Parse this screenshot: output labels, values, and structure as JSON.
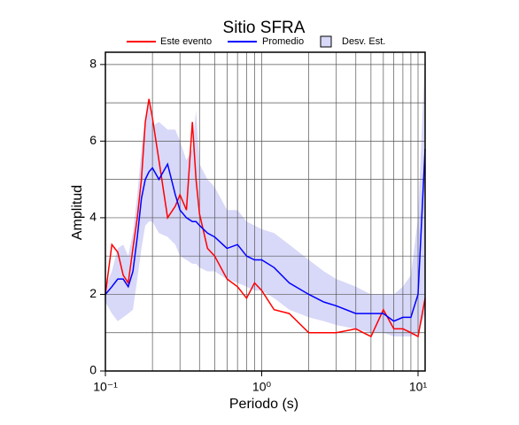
{
  "chart_data": {
    "type": "line",
    "title": "Sitio SFRA",
    "xlabel": "Periodo (s)",
    "ylabel": "Amplitud",
    "xscale": "log",
    "xlim": [
      0.1,
      11.1
    ],
    "ylim": [
      0,
      8.32
    ],
    "xticks": [
      {
        "value": 0.1,
        "label": "10⁻¹"
      },
      {
        "value": 1,
        "label": "10⁰"
      },
      {
        "value": 10,
        "label": "10¹"
      }
    ],
    "xminor": [
      0.2,
      0.3,
      0.4,
      0.5,
      0.6,
      0.7,
      0.8,
      0.9,
      2,
      3,
      4,
      5,
      6,
      7,
      8,
      9
    ],
    "yticks": [
      0,
      2,
      4,
      6,
      8
    ],
    "yminor": [
      1,
      3,
      5,
      7
    ],
    "grid": true,
    "x": [
      0.1,
      0.11,
      0.12,
      0.13,
      0.14,
      0.15,
      0.16,
      0.17,
      0.18,
      0.19,
      0.2,
      0.22,
      0.25,
      0.28,
      0.3,
      0.33,
      0.36,
      0.38,
      0.4,
      0.45,
      0.5,
      0.6,
      0.7,
      0.8,
      0.9,
      1.0,
      1.2,
      1.5,
      2,
      2.5,
      3,
      4,
      5,
      6,
      7,
      8,
      9,
      10,
      11.1
    ],
    "band": {
      "name": "Desv. Est.",
      "color": "#d8d8f8",
      "low": [
        1.8,
        1.5,
        1.3,
        1.4,
        1.5,
        1.6,
        2.4,
        3.2,
        3.8,
        3.9,
        3.9,
        3.6,
        3.5,
        3.3,
        3.0,
        2.9,
        2.8,
        2.8,
        2.7,
        2.6,
        2.6,
        2.4,
        2.3,
        2.2,
        2.1,
        2.1,
        1.9,
        1.6,
        1.4,
        1.3,
        1.2,
        1.1,
        1.0,
        1.0,
        0.9,
        0.9,
        0.9,
        1.0,
        1.5
      ],
      "high": [
        2.2,
        2.6,
        3.2,
        3.3,
        3.0,
        3.6,
        4.6,
        5.8,
        6.6,
        7.0,
        6.4,
        6.5,
        6.3,
        6.3,
        6.0,
        5.5,
        5.8,
        6.8,
        5.4,
        5.0,
        4.8,
        4.2,
        4.2,
        3.9,
        3.8,
        3.7,
        3.6,
        3.3,
        2.9,
        2.6,
        2.4,
        2.2,
        2.0,
        2.0,
        2.0,
        2.2,
        2.5,
        4.0,
        8.3
      ]
    },
    "series": [
      {
        "name": "Este evento",
        "color": "#ff0000",
        "values": [
          2.0,
          3.3,
          3.1,
          2.5,
          2.3,
          3.2,
          4.0,
          5.0,
          6.5,
          7.1,
          6.6,
          5.5,
          4.0,
          4.3,
          4.6,
          4.2,
          6.5,
          5.0,
          4.1,
          3.2,
          3.0,
          2.4,
          2.2,
          1.9,
          2.3,
          2.1,
          1.6,
          1.5,
          1.0,
          1.0,
          1.0,
          1.1,
          0.9,
          1.6,
          1.1,
          1.1,
          1.0,
          0.9,
          1.9
        ]
      },
      {
        "name": "Promedio",
        "color": "#0000ff",
        "values": [
          2.0,
          2.2,
          2.4,
          2.4,
          2.2,
          2.6,
          3.5,
          4.5,
          5.0,
          5.2,
          5.3,
          5.0,
          5.4,
          4.6,
          4.2,
          4.0,
          3.9,
          3.9,
          3.8,
          3.6,
          3.5,
          3.2,
          3.3,
          3.0,
          2.9,
          2.9,
          2.7,
          2.3,
          2.0,
          1.8,
          1.7,
          1.5,
          1.5,
          1.5,
          1.3,
          1.4,
          1.4,
          2.0,
          5.8
        ]
      }
    ]
  }
}
